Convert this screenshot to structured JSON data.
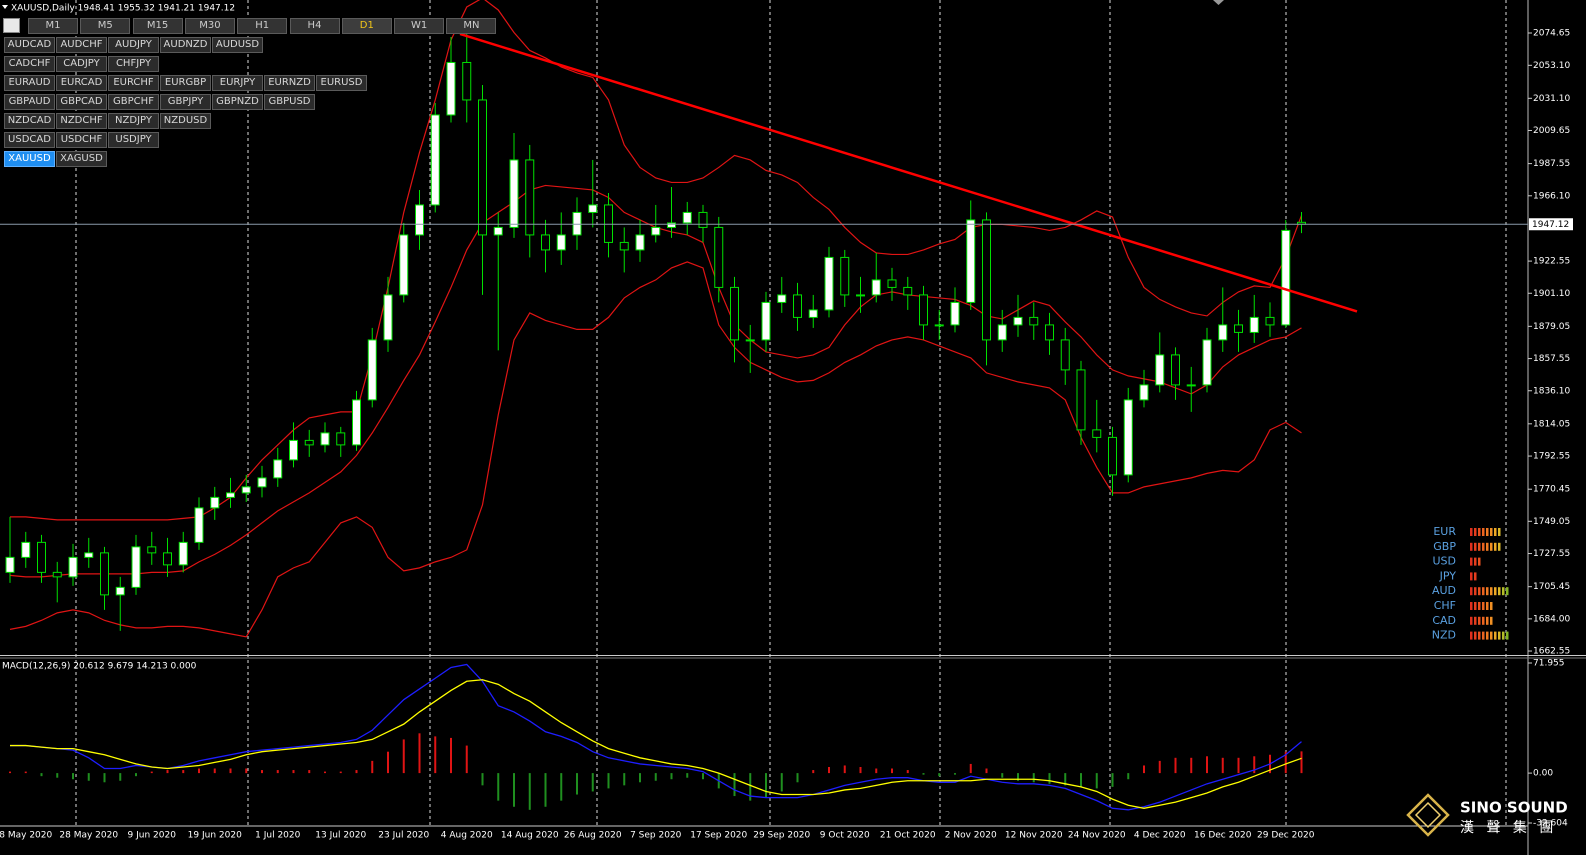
{
  "title": "XAUUSD,Daily 1948.41 1955.32 1941.21 1947.12",
  "timeframes": [
    {
      "label": "M1"
    },
    {
      "label": "M5"
    },
    {
      "label": "M15"
    },
    {
      "label": "M30"
    },
    {
      "label": "H1"
    },
    {
      "label": "H4"
    },
    {
      "label": "D1",
      "active": true
    },
    {
      "label": "W1"
    },
    {
      "label": "MN"
    }
  ],
  "symbol_rows": [
    [
      {
        "label": "AUDCAD"
      },
      {
        "label": "AUDCHF"
      },
      {
        "label": "AUDJPY"
      },
      {
        "label": "AUDNZD"
      },
      {
        "label": "AUDUSD"
      }
    ],
    [
      {
        "label": "CADCHF"
      },
      {
        "label": "CADJPY"
      },
      {
        "label": "CHFJPY"
      }
    ],
    [
      {
        "label": "EURAUD"
      },
      {
        "label": "EURCAD"
      },
      {
        "label": "EURCHF"
      },
      {
        "label": "EURGBP"
      },
      {
        "label": "EURJPY"
      },
      {
        "label": "EURNZD"
      },
      {
        "label": "EURUSD"
      }
    ],
    [
      {
        "label": "GBPAUD"
      },
      {
        "label": "GBPCAD"
      },
      {
        "label": "GBPCHF"
      },
      {
        "label": "GBPJPY"
      },
      {
        "label": "GBPNZD"
      },
      {
        "label": "GBPUSD"
      }
    ],
    [
      {
        "label": "NZDCAD"
      },
      {
        "label": "NZDCHF"
      },
      {
        "label": "NZDJPY"
      },
      {
        "label": "NZDUSD"
      }
    ],
    [
      {
        "label": "USDCAD"
      },
      {
        "label": "USDCHF"
      },
      {
        "label": "USDJPY"
      }
    ],
    [
      {
        "label": "XAUUSD",
        "active": true
      },
      {
        "label": "XAGUSD"
      }
    ]
  ],
  "chart_data": [
    {
      "type": "candlestick",
      "title": "XAUUSD,Daily 1948.41 1955.32 1941.21 1947.12",
      "categories": [
        null,
        "8 May 2020",
        null,
        null,
        null,
        "28 May 2020",
        null,
        null,
        null,
        "9 Jun 2020",
        null,
        null,
        null,
        "19 Jun 2020",
        null,
        null,
        null,
        "1 Jul 2020",
        null,
        null,
        null,
        "13 Jul 2020",
        null,
        null,
        null,
        "23 Jul 2020",
        null,
        null,
        null,
        "4 Aug 2020",
        null,
        null,
        null,
        "14 Aug 2020",
        null,
        null,
        null,
        "26 Aug 2020",
        null,
        null,
        null,
        "7 Sep 2020",
        null,
        null,
        null,
        "17 Sep 2020",
        null,
        null,
        null,
        "29 Sep 2020",
        null,
        null,
        null,
        "9 Oct 2020",
        null,
        null,
        null,
        "21 Oct 2020",
        null,
        null,
        null,
        "2 Nov 2020",
        null,
        null,
        null,
        "12 Nov 2020",
        null,
        null,
        null,
        "24 Nov 2020",
        null,
        null,
        null,
        "4 Dec 2020",
        null,
        null,
        null,
        "16 Dec 2020",
        null,
        null,
        null,
        "29 Dec 2020",
        null
      ],
      "open": [
        1715,
        1725,
        1735,
        1715,
        1712,
        1725,
        1728,
        1700,
        1705,
        1732,
        1728,
        1720,
        1735,
        1758,
        1765,
        1768,
        1772,
        1778,
        1790,
        1803,
        1800,
        1808,
        1800,
        1830,
        1870,
        1900,
        1940,
        1960,
        2020,
        2055,
        2030,
        1940,
        1945,
        1990,
        1940,
        1930,
        1940,
        1955,
        1960,
        1935,
        1930,
        1940,
        1945,
        1948,
        1955,
        1945,
        1905,
        1870,
        1870,
        1895,
        1900,
        1885,
        1890,
        1925,
        1900,
        1900,
        1910,
        1905,
        1900,
        1880,
        1880,
        1895,
        1950,
        1870,
        1880,
        1885,
        1880,
        1870,
        1850,
        1810,
        1805,
        1780,
        1830,
        1840,
        1860,
        1840,
        1840,
        1870,
        1880,
        1875,
        1885,
        1880,
        1948.41
      ],
      "high": [
        1752,
        1742,
        1740,
        1722,
        1734,
        1738,
        1732,
        1712,
        1740,
        1742,
        1738,
        1742,
        1765,
        1772,
        1778,
        1780,
        1786,
        1798,
        1815,
        1810,
        1815,
        1812,
        1836,
        1878,
        1912,
        1948,
        1970,
        2028,
        2072,
        2076,
        2040,
        1955,
        2008,
        2000,
        1950,
        1955,
        1965,
        1990,
        1968,
        1945,
        1950,
        1960,
        1972,
        1962,
        1960,
        1952,
        1912,
        1880,
        1902,
        1912,
        1908,
        1900,
        1932,
        1930,
        1912,
        1928,
        1918,
        1912,
        1906,
        1890,
        1905,
        1963,
        1955,
        1890,
        1900,
        1895,
        1888,
        1878,
        1856,
        1830,
        1812,
        1838,
        1850,
        1875,
        1865,
        1852,
        1878,
        1905,
        1890,
        1900,
        1895,
        1950,
        1955.32
      ],
      "low": [
        1708,
        1718,
        1708,
        1695,
        1706,
        1718,
        1690,
        1676,
        1700,
        1720,
        1712,
        1715,
        1730,
        1750,
        1758,
        1762,
        1765,
        1772,
        1785,
        1792,
        1795,
        1792,
        1796,
        1825,
        1862,
        1895,
        1930,
        1955,
        2015,
        2015,
        1900,
        1863,
        1938,
        1925,
        1915,
        1920,
        1930,
        1945,
        1925,
        1915,
        1922,
        1935,
        1938,
        1940,
        1935,
        1895,
        1855,
        1848,
        1862,
        1888,
        1876,
        1878,
        1885,
        1892,
        1888,
        1895,
        1896,
        1890,
        1870,
        1870,
        1875,
        1890,
        1853,
        1862,
        1872,
        1870,
        1860,
        1840,
        1800,
        1795,
        1766,
        1775,
        1825,
        1835,
        1830,
        1822,
        1835,
        1862,
        1862,
        1868,
        1872,
        1878,
        1941.21
      ],
      "close": [
        1725,
        1735,
        1715,
        1712,
        1725,
        1728,
        1700,
        1705,
        1732,
        1728,
        1720,
        1735,
        1758,
        1765,
        1768,
        1772,
        1778,
        1790,
        1803,
        1800,
        1808,
        1800,
        1830,
        1870,
        1900,
        1940,
        1960,
        2020,
        2055,
        2030,
        1940,
        1945,
        1990,
        1940,
        1930,
        1940,
        1955,
        1960,
        1935,
        1930,
        1940,
        1945,
        1948,
        1955,
        1945,
        1905,
        1870,
        1870,
        1895,
        1900,
        1885,
        1890,
        1925,
        1900,
        1900,
        1910,
        1905,
        1900,
        1880,
        1880,
        1895,
        1950,
        1870,
        1880,
        1885,
        1880,
        1870,
        1850,
        1810,
        1805,
        1780,
        1830,
        1840,
        1860,
        1840,
        1840,
        1870,
        1880,
        1875,
        1885,
        1880,
        1943,
        1947.12
      ],
      "up_color": "#ffffff",
      "down_color": "#000000",
      "wick_color": "#00e000",
      "series": [
        {
          "color": "#e01414",
          "values": [
            1752,
            1752,
            1751,
            1750,
            1750,
            1750,
            1750,
            1750,
            1750,
            1750,
            1750,
            1751,
            1752,
            1758,
            1765,
            1778,
            1790,
            1800,
            1810,
            1818,
            1820,
            1822,
            1822,
            1860,
            1905,
            1955,
            1995,
            2030,
            2070,
            2092,
            2098,
            2090,
            2075,
            2063,
            2058,
            2052,
            2048,
            2045,
            2030,
            2000,
            1985,
            1978,
            1975,
            1975,
            1978,
            1985,
            1993,
            1990,
            1983,
            1980,
            1975,
            1965,
            1957,
            1945,
            1935,
            1928,
            1927,
            1927,
            1930,
            1934,
            1937,
            1945,
            1947,
            1947,
            1946,
            1945,
            1943,
            1945,
            1950,
            1956,
            1952,
            1925,
            1905,
            1897,
            1892,
            1888,
            1886,
            1895,
            1902,
            1906,
            1905,
            1925,
            1953
          ]
        },
        {
          "color": "#e01414",
          "values": [
            1713,
            1712,
            1712,
            1713,
            1714,
            1714,
            1714,
            1714,
            1714,
            1715,
            1715,
            1716,
            1722,
            1727,
            1733,
            1740,
            1748,
            1756,
            1762,
            1768,
            1775,
            1782,
            1793,
            1808,
            1825,
            1843,
            1860,
            1882,
            1905,
            1930,
            1948,
            1955,
            1962,
            1970,
            1973,
            1972,
            1971,
            1970,
            1965,
            1955,
            1950,
            1945,
            1942,
            1940,
            1935,
            1905,
            1880,
            1870,
            1862,
            1860,
            1858,
            1860,
            1865,
            1880,
            1892,
            1900,
            1902,
            1900,
            1899,
            1898,
            1897,
            1893,
            1886,
            1884,
            1890,
            1896,
            1893,
            1882,
            1872,
            1860,
            1850,
            1846,
            1844,
            1842,
            1838,
            1834,
            1840,
            1852,
            1860,
            1865,
            1870,
            1872,
            1878
          ]
        },
        {
          "color": "#e01414",
          "values": [
            1677,
            1679,
            1683,
            1688,
            1690,
            1688,
            1683,
            1680,
            1678,
            1678,
            1679,
            1679,
            1678,
            1676,
            1674,
            1672,
            1690,
            1712,
            1718,
            1722,
            1735,
            1748,
            1752,
            1745,
            1725,
            1716,
            1718,
            1722,
            1725,
            1730,
            1760,
            1820,
            1870,
            1888,
            1883,
            1880,
            1877,
            1877,
            1885,
            1898,
            1905,
            1910,
            1918,
            1922,
            1918,
            1880,
            1865,
            1855,
            1850,
            1845,
            1842,
            1843,
            1848,
            1855,
            1860,
            1866,
            1870,
            1872,
            1870,
            1866,
            1862,
            1858,
            1848,
            1845,
            1842,
            1840,
            1838,
            1830,
            1805,
            1785,
            1768,
            1768,
            1772,
            1774,
            1776,
            1778,
            1781,
            1783,
            1782,
            1790,
            1810,
            1815,
            1808
          ]
        }
      ],
      "trendline": {
        "color": "#ff0000",
        "values": [
          2074,
          1889
        ]
      },
      "current_price": 1947.12,
      "ylim": [
        1659.9,
        2096.65
      ],
      "yticks": [
        2074.65,
        {
          "value": 2053.1,
          "label": "2053.10"
        },
        {
          "value": 2031.1,
          "label": "2031.10"
        },
        2009.65,
        1987.55,
        {
          "value": 1966.1,
          "label": "1966.10"
        },
        1922.55,
        {
          "value": 1901.1,
          "label": "1901.10"
        },
        1879.05,
        1857.55,
        {
          "value": 1836.1,
          "label": "1836.10"
        },
        1814.05,
        1792.55,
        1770.45,
        1749.05,
        1727.55,
        1705.45,
        {
          "value": 1684,
          "label": "1684.00"
        },
        1662.55
      ]
    },
    {
      "type": "macd",
      "title": "MACD(12,26,9) 20.612 9.679 14.213 0.000",
      "series": [
        {
          "color": "#1e1eff",
          "values": [
            18,
            18,
            17,
            16,
            15,
            10,
            3,
            3,
            5,
            4,
            3,
            5,
            8,
            10,
            12,
            14,
            15,
            16,
            17,
            18,
            19,
            20,
            22,
            28,
            38,
            48,
            55,
            62,
            69,
            71,
            60,
            44,
            40,
            34,
            27,
            24,
            20,
            14,
            10,
            8,
            6,
            5,
            4,
            3,
            1,
            -5,
            -11,
            -15,
            -16,
            -16,
            -16,
            -14,
            -11,
            -8,
            -6,
            -4,
            -3,
            -3,
            -5,
            -6,
            -6,
            -2,
            -4,
            -6,
            -7,
            -7,
            -8,
            -10,
            -14,
            -18,
            -23,
            -24,
            -22,
            -19,
            -15,
            -11,
            -7,
            -4,
            -1,
            2,
            6,
            12,
            20.612
          ]
        },
        {
          "color": "#ffff00",
          "values": [
            18,
            18,
            17,
            16,
            16,
            14,
            12,
            9,
            6,
            4,
            3,
            4,
            5,
            7,
            9,
            12,
            14,
            15,
            16,
            17,
            18,
            19,
            20,
            22,
            27,
            32,
            40,
            47,
            54,
            60,
            61,
            58,
            52,
            47,
            40,
            33,
            27,
            21,
            16,
            13,
            10,
            8,
            6,
            5,
            3,
            0,
            -4,
            -8,
            -12,
            -14,
            -14,
            -14,
            -13,
            -11,
            -10,
            -8,
            -6,
            -5,
            -5,
            -5,
            -5,
            -5,
            -4,
            -4,
            -4,
            -4,
            -5,
            -7,
            -9,
            -12,
            -17,
            -21,
            -23,
            -21,
            -19,
            -16,
            -13,
            -9,
            -6,
            -2,
            2,
            6,
            9.679
          ]
        }
      ],
      "histogram": {
        "up_color": "#e01414",
        "down_color": "#1f8f1f",
        "values": [
          1,
          1,
          -2,
          -3,
          -4,
          -5,
          -6,
          -5,
          -2,
          1,
          2,
          2,
          3,
          3,
          3,
          3,
          2,
          2,
          2,
          2,
          1,
          1,
          2,
          8,
          14,
          22,
          26,
          24,
          23,
          18,
          -8,
          -18,
          -22,
          -24,
          -22,
          -18,
          -14,
          -12,
          -10,
          -8,
          -6,
          -5,
          -4,
          -3,
          -4,
          -10,
          -15,
          -18,
          -16,
          -12,
          -6,
          2,
          4,
          5,
          4,
          3,
          3,
          2,
          -1,
          -2,
          -1,
          6,
          3,
          -3,
          -5,
          -6,
          -7,
          -8,
          -9,
          -10,
          -9,
          -4,
          5,
          8,
          10,
          10,
          11,
          10,
          10,
          11,
          12,
          14,
          14.213
        ]
      },
      "ylim": [
        -32.604,
        71.955
      ],
      "yticks": [
        71.955,
        {
          "value": 0,
          "label": "0.00"
        },
        -32.604
      ]
    }
  ],
  "currency_strength": {
    "bar_colors": [
      "#e0301e",
      "#e43e1e",
      "#e8501e",
      "#ec6420",
      "#f07a22",
      "#f09024",
      "#eca826",
      "#dcb828",
      "#b4bc28",
      "#84b424"
    ],
    "items": [
      {
        "name": "EUR",
        "value": 8
      },
      {
        "name": "GBP",
        "value": 8
      },
      {
        "name": "USD",
        "value": 3
      },
      {
        "name": "JPY",
        "value": 2
      },
      {
        "name": "AUD",
        "value": 10
      },
      {
        "name": "CHF",
        "value": 6
      },
      {
        "name": "CAD",
        "value": 6
      },
      {
        "name": "NZD",
        "value": 10
      }
    ]
  },
  "logo": {
    "name": "SINO SOUND",
    "subtitle": "漢 聲 集 團"
  }
}
